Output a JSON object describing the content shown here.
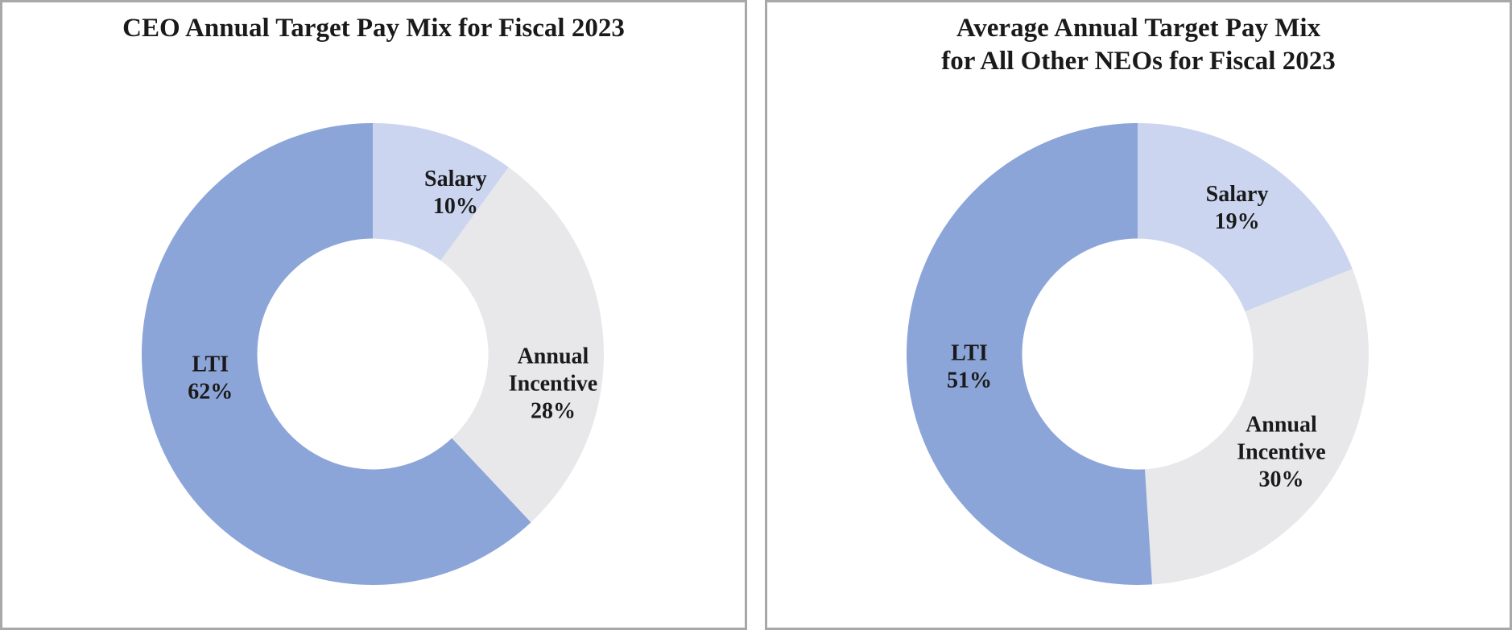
{
  "chart_data": [
    {
      "type": "pie",
      "subtype": "donut",
      "title": "CEO Annual Target Pay Mix for Fiscal 2023",
      "hole_ratio": 0.5,
      "start_angle_deg": 0,
      "direction": "clockwise",
      "legend": "none",
      "segments": [
        {
          "label": "Salary",
          "value": 10,
          "color": "#CBD5F0",
          "label_lines": [
            "Salary",
            "10%"
          ],
          "label_angle": 27,
          "label_r": 0.79
        },
        {
          "label": "Annual Incentive",
          "value": 28,
          "color": "#E8E8EA",
          "label_lines": [
            "Annual",
            "Incentive",
            "28%"
          ],
          "label_angle": 99,
          "label_r": 0.79
        },
        {
          "label": "LTI",
          "value": 62,
          "color": "#8CA5D8",
          "label_lines": [
            "LTI",
            "62%"
          ],
          "label_angle": 262,
          "label_r": 0.71
        }
      ]
    },
    {
      "type": "pie",
      "subtype": "donut",
      "title": "Average Annual Target Pay Mix\nfor All Other NEOs for Fiscal 2023",
      "hole_ratio": 0.5,
      "start_angle_deg": 0,
      "direction": "clockwise",
      "legend": "none",
      "segments": [
        {
          "label": "Salary",
          "value": 19,
          "color": "#CBD5F0",
          "label_lines": [
            "Salary",
            "19%"
          ],
          "label_angle": 34,
          "label_r": 0.77
        },
        {
          "label": "Annual Incentive",
          "value": 30,
          "color": "#E8E8EA",
          "label_lines": [
            "Annual",
            "Incentive",
            "30%"
          ],
          "label_angle": 124,
          "label_r": 0.75
        },
        {
          "label": "LTI",
          "value": 51,
          "color": "#8CA5D8",
          "label_lines": [
            "LTI",
            "51%"
          ],
          "label_angle": 266,
          "label_r": 0.73
        }
      ]
    }
  ],
  "style": {
    "panel_border_color": "#a8a8a8",
    "background_color": "#ffffff",
    "text_color": "#1a1a1a"
  }
}
